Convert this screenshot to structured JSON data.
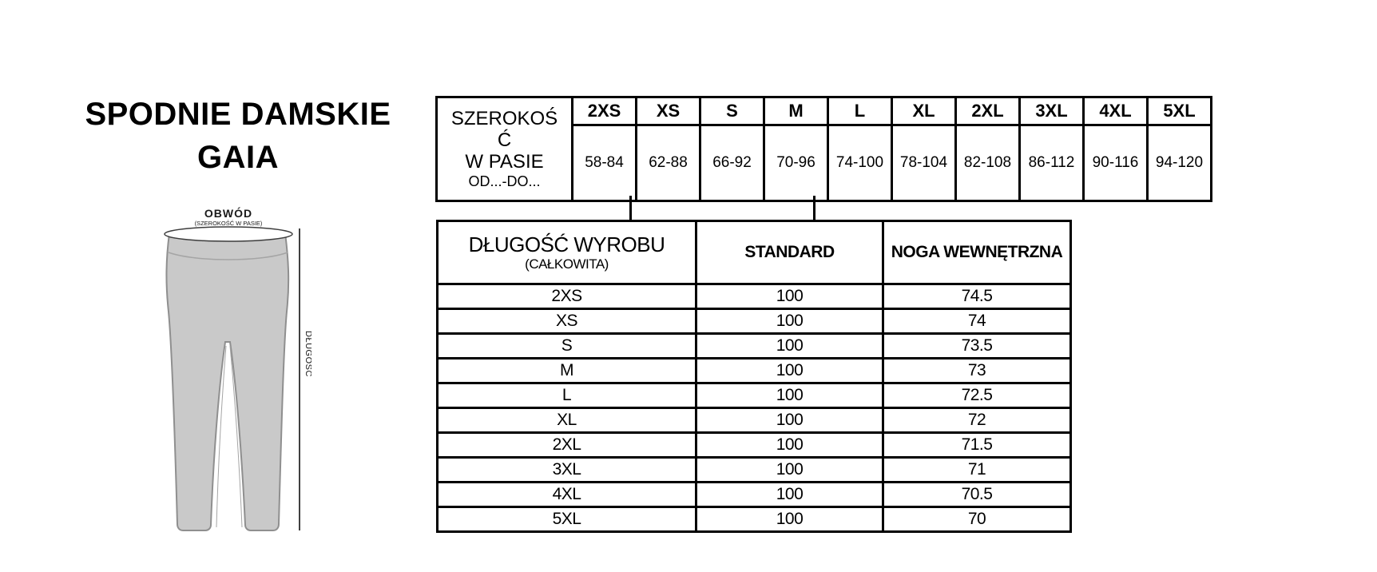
{
  "title": {
    "line1": "SPODNIE DAMSKIE",
    "line2": "GAIA"
  },
  "figure": {
    "waist_label": "OBWÓD",
    "waist_sublabel": "(SZEROKOŚĆ W PASIE)",
    "length_label": "DŁUGOŚĆ"
  },
  "waist_table": {
    "label_line1": "SZEROKOŚ",
    "label_line2": "Ć",
    "label_line3": "W PASIE",
    "label_sub": "OD...-DO...",
    "sizes": [
      "2XS",
      "XS",
      "S",
      "M",
      "L",
      "XL",
      "2XL",
      "3XL",
      "4XL",
      "5XL"
    ],
    "ranges": [
      "58-84",
      "62-88",
      "66-92",
      "70-96",
      "74-100",
      "78-104",
      "82-108",
      "86-112",
      "90-116",
      "94-120"
    ]
  },
  "length_table": {
    "header": {
      "col1": "DŁUGOŚĆ WYROBU",
      "col1_sub": "(CAŁKOWITA)",
      "col2": "STANDARD",
      "col3": "NOGA WEWNĘTRZNA"
    },
    "rows": [
      {
        "size": "2XS",
        "standard": "100",
        "inner_leg": "74.5"
      },
      {
        "size": "XS",
        "standard": "100",
        "inner_leg": "74"
      },
      {
        "size": "S",
        "standard": "100",
        "inner_leg": "73.5"
      },
      {
        "size": "M",
        "standard": "100",
        "inner_leg": "73"
      },
      {
        "size": "L",
        "standard": "100",
        "inner_leg": "72.5"
      },
      {
        "size": "XL",
        "standard": "100",
        "inner_leg": "72"
      },
      {
        "size": "2XL",
        "standard": "100",
        "inner_leg": "71.5"
      },
      {
        "size": "3XL",
        "standard": "100",
        "inner_leg": "71"
      },
      {
        "size": "4XL",
        "standard": "100",
        "inner_leg": "70.5"
      },
      {
        "size": "5XL",
        "standard": "100",
        "inner_leg": "70"
      }
    ]
  },
  "colors": {
    "text": "#000000",
    "table_border": "#000000",
    "pants_fill": "#c9c9c9",
    "pants_outline": "#8f8f8f",
    "seam_line": "#a5a5a5",
    "waist_ellipse_fill": "#ffffff",
    "waist_ellipse_stroke": "#3c3c3c",
    "measure_line": "#000000"
  }
}
